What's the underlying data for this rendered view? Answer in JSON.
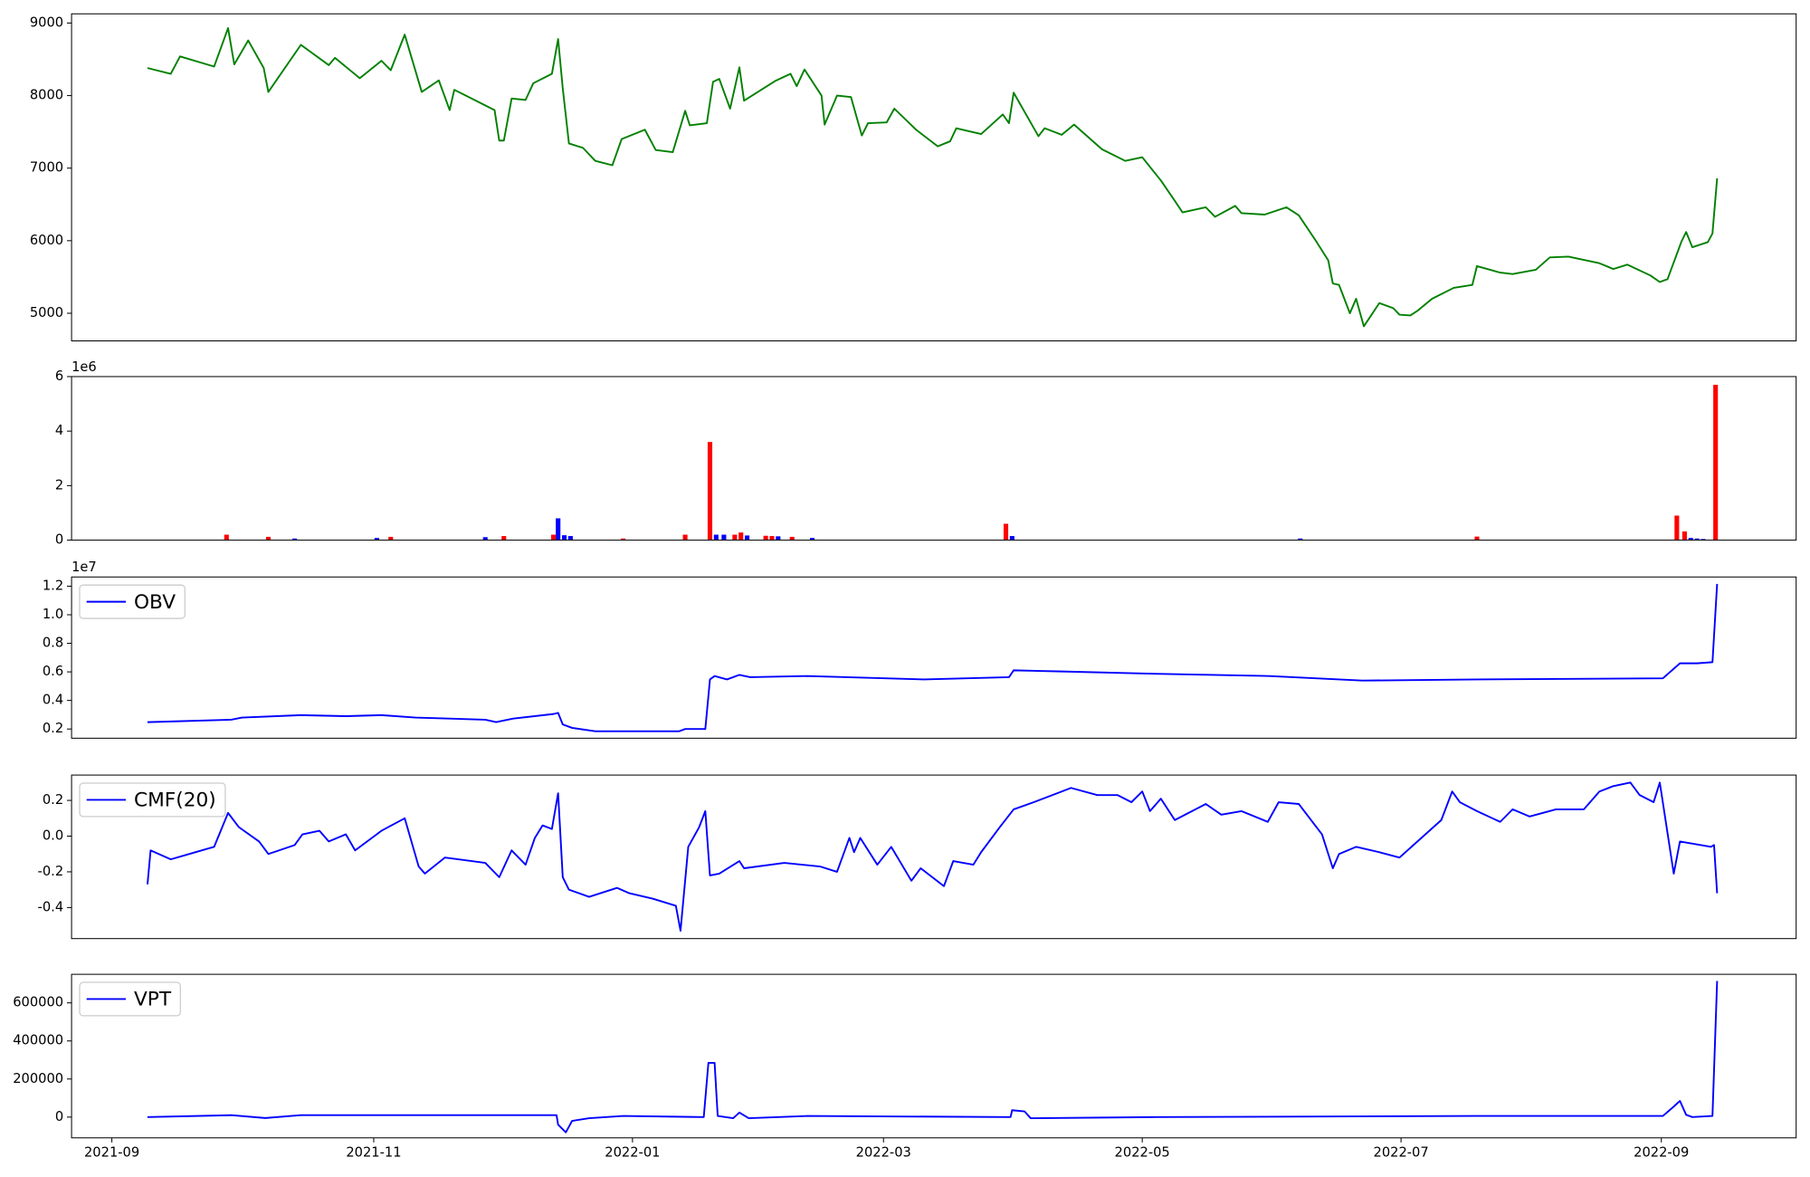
{
  "chart_data": [
    {
      "type": "line",
      "xlim": [
        2021.638,
        2022.751
      ],
      "ylim": [
        4619,
        9127
      ],
      "yticks": [
        5000,
        6000,
        7000,
        8000,
        9000
      ],
      "x": [
        2021.687,
        2021.702,
        2021.708,
        2021.73,
        2021.739,
        2021.743,
        2021.752,
        2021.762,
        2021.765,
        2021.786,
        2021.804,
        2021.808,
        2021.824,
        2021.838,
        2021.844,
        2021.853,
        2021.864,
        2021.875,
        2021.882,
        2021.885,
        2021.911,
        2021.914,
        2021.917,
        2021.922,
        2021.931,
        2021.936,
        2021.948,
        2021.952,
        2021.955,
        2021.959,
        2021.968,
        2021.976,
        2021.987,
        2021.993,
        2022.008,
        2022.015,
        2022.026,
        2022.034,
        2022.037,
        2022.048,
        2022.052,
        2022.056,
        2022.063,
        2022.069,
        2022.072,
        2022.092,
        2022.102,
        2022.106,
        2022.111,
        2022.122,
        2022.124,
        2022.132,
        2022.141,
        2022.148,
        2022.152,
        2022.164,
        2022.169,
        2022.183,
        2022.197,
        2022.205,
        2022.209,
        2022.225,
        2022.239,
        2022.243,
        2022.246,
        2022.262,
        2022.266,
        2022.277,
        2022.285,
        2022.303,
        2022.318,
        2022.329,
        2022.341,
        2022.35,
        2022.355,
        2022.37,
        2022.376,
        2022.389,
        2022.393,
        2022.408,
        2022.422,
        2022.43,
        2022.441,
        2022.449,
        2022.452,
        2022.456,
        2022.463,
        2022.467,
        2022.472,
        2022.482,
        2022.491,
        2022.495,
        2022.502,
        2022.507,
        2022.516,
        2022.53,
        2022.542,
        2022.545,
        2022.56,
        2022.568,
        2022.583,
        2022.592,
        2022.604,
        2022.624,
        2022.633,
        2022.642,
        2022.657,
        2022.663,
        2022.668,
        2022.677,
        2022.68,
        2022.684,
        2022.694,
        2022.697,
        2022.7
      ],
      "series": [
        {
          "color": "#008000",
          "values": [
            8380,
            8300,
            8540,
            8400,
            8930,
            8430,
            8760,
            8380,
            8050,
            8700,
            8420,
            8520,
            8240,
            8480,
            8350,
            8840,
            8050,
            8210,
            7800,
            8080,
            7800,
            7380,
            7380,
            7960,
            7940,
            8170,
            8300,
            8780,
            8100,
            7340,
            7280,
            7100,
            7040,
            7400,
            7530,
            7250,
            7220,
            7790,
            7590,
            7620,
            8190,
            8230,
            7820,
            8390,
            7930,
            8200,
            8300,
            8130,
            8360,
            8000,
            7600,
            8000,
            7980,
            7450,
            7620,
            7630,
            7820,
            7530,
            7300,
            7370,
            7550,
            7470,
            7740,
            7620,
            8040,
            7440,
            7550,
            7460,
            7600,
            7260,
            7100,
            7150,
            6830,
            6550,
            6390,
            6460,
            6330,
            6480,
            6380,
            6360,
            6460,
            6350,
            6000,
            5730,
            5410,
            5390,
            5000,
            5200,
            4820,
            5140,
            5070,
            4980,
            4970,
            5040,
            5200,
            5350,
            5390,
            5650,
            5560,
            5540,
            5600,
            5770,
            5780,
            5690,
            5610,
            5670,
            5520,
            5430,
            5470,
            5990,
            6120,
            5910,
            5980,
            6100,
            6860
          ]
        }
      ]
    },
    {
      "type": "bar",
      "xlim": [
        2021.638,
        2022.751
      ],
      "ylim": [
        0,
        6000000
      ],
      "y_offset_label": "1e6",
      "yticks": [
        0,
        {
          "value": 2000000,
          "label": "2"
        },
        {
          "value": 4000000,
          "label": "4"
        },
        {
          "value": 6000000,
          "label": "6"
        }
      ],
      "x": [
        2021.738,
        2021.765,
        2021.782,
        2021.835,
        2021.844,
        2021.905,
        2021.917,
        2021.949,
        2021.952,
        2021.956,
        2021.96,
        2021.994,
        2022.034,
        2022.05,
        2022.054,
        2022.059,
        2022.066,
        2022.07,
        2022.074,
        2022.086,
        2022.09,
        2022.094,
        2022.103,
        2022.116,
        2022.241,
        2022.245,
        2022.431,
        2022.545,
        2022.674,
        2022.679,
        2022.683,
        2022.687,
        2022.691,
        2022.699
      ],
      "values": [
        200000,
        120000,
        60000,
        80000,
        120000,
        110000,
        150000,
        200000,
        800000,
        180000,
        150000,
        60000,
        200000,
        3600000,
        200000,
        200000,
        200000,
        280000,
        170000,
        160000,
        150000,
        140000,
        120000,
        80000,
        600000,
        150000,
        60000,
        130000,
        900000,
        320000,
        80000,
        60000,
        40000,
        5700000
      ],
      "colors": [
        "#ff0000",
        "#ff0000",
        "#0000ff",
        "#0000ff",
        "#ff0000",
        "#0000ff",
        "#ff0000",
        "#ff0000",
        "#0000ff",
        "#0000ff",
        "#0000ff",
        "#ff0000",
        "#ff0000",
        "#ff0000",
        "#0000ff",
        "#0000ff",
        "#ff0000",
        "#ff0000",
        "#0000ff",
        "#ff0000",
        "#ff0000",
        "#0000ff",
        "#ff0000",
        "#0000ff",
        "#ff0000",
        "#0000ff",
        "#0000ff",
        "#ff0000",
        "#ff0000",
        "#ff0000",
        "#0000ff",
        "#0000ff",
        "#0000ff",
        "#ff0000"
      ]
    },
    {
      "type": "line",
      "xlim": [
        2021.638,
        2022.751
      ],
      "ylim": [
        1355000,
        12645000
      ],
      "y_offset_label": "1e7",
      "legend": "upper left",
      "yticks": [
        {
          "value": 2000000,
          "label": "0.2"
        },
        {
          "value": 4000000,
          "label": "0.4"
        },
        {
          "value": 6000000,
          "label": "0.6"
        },
        {
          "value": 8000000,
          "label": "0.8"
        },
        {
          "value": 10000000,
          "label": "1.0"
        },
        {
          "value": 12000000,
          "label": "1.2"
        }
      ],
      "x": [
        2021.687,
        2021.741,
        2021.748,
        2021.786,
        2021.815,
        2021.838,
        2021.86,
        2021.905,
        2021.912,
        2021.923,
        2021.949,
        2021.952,
        2021.955,
        2021.961,
        2021.976,
        2022.02,
        2022.03,
        2022.034,
        2022.047,
        2022.05,
        2022.053,
        2022.061,
        2022.069,
        2022.076,
        2022.113,
        2022.188,
        2022.243,
        2022.246,
        2022.277,
        2022.337,
        2022.411,
        2022.471,
        2022.545,
        2022.665,
        2022.676,
        2022.687,
        2022.697,
        2022.7
      ],
      "series": [
        {
          "name": "OBV",
          "color": "#0000ff",
          "values": [
            2480000,
            2650000,
            2800000,
            2970000,
            2900000,
            2970000,
            2800000,
            2650000,
            2480000,
            2730000,
            3050000,
            3130000,
            2320000,
            2080000,
            1840000,
            1840000,
            1840000,
            2000000,
            2000000,
            5470000,
            5710000,
            5470000,
            5790000,
            5630000,
            5710000,
            5470000,
            5630000,
            6110000,
            6030000,
            5870000,
            5710000,
            5390000,
            5470000,
            5550000,
            6600000,
            6600000,
            6680000,
            12160000
          ]
        }
      ]
    },
    {
      "type": "line",
      "xlim": [
        2021.638,
        2022.751
      ],
      "ylim": [
        -0.574,
        0.342
      ],
      "legend": "upper left",
      "yticks": [
        -0.4,
        -0.2,
        {
          "value": 0,
          "label": "0.0"
        },
        0.2
      ],
      "x": [
        2021.687,
        2021.689,
        2021.702,
        2021.71,
        2021.73,
        2021.739,
        2021.746,
        2021.759,
        2021.765,
        2021.782,
        2021.787,
        2021.798,
        2021.804,
        2021.815,
        2021.821,
        2021.838,
        2021.853,
        2021.862,
        2021.866,
        2021.879,
        2021.905,
        2021.914,
        2021.922,
        2021.931,
        2021.937,
        2021.942,
        2021.948,
        2021.952,
        2021.955,
        2021.959,
        2021.972,
        2021.99,
        2021.998,
        2022.013,
        2022.028,
        2022.031,
        2022.036,
        2022.043,
        2022.047,
        2022.05,
        2022.056,
        2022.069,
        2022.072,
        2022.098,
        2022.121,
        2022.132,
        2022.14,
        2022.143,
        2022.147,
        2022.158,
        2022.167,
        2022.18,
        2022.186,
        2022.201,
        2022.207,
        2022.22,
        2022.225,
        2022.237,
        2022.246,
        2022.259,
        2022.277,
        2022.283,
        2022.3,
        2022.313,
        2022.322,
        2022.329,
        2022.334,
        2022.341,
        2022.35,
        2022.37,
        2022.38,
        2022.393,
        2022.41,
        2022.417,
        2022.43,
        2022.445,
        2022.452,
        2022.456,
        2022.467,
        2022.482,
        2022.495,
        2022.504,
        2022.522,
        2022.529,
        2022.534,
        2022.545,
        2022.56,
        2022.568,
        2022.579,
        2022.596,
        2022.614,
        2022.624,
        2022.633,
        2022.644,
        2022.65,
        2022.659,
        2022.663,
        2022.672,
        2022.676,
        2022.696,
        2022.698,
        2022.7
      ],
      "series": [
        {
          "name": "CMF(20)",
          "color": "#0000ff",
          "values": [
            -0.27,
            -0.08,
            -0.13,
            -0.11,
            -0.06,
            0.13,
            0.05,
            -0.03,
            -0.1,
            -0.05,
            0.01,
            0.03,
            -0.03,
            0.01,
            -0.08,
            0.03,
            0.1,
            -0.17,
            -0.21,
            -0.12,
            -0.15,
            -0.23,
            -0.08,
            -0.16,
            -0.01,
            0.06,
            0.04,
            0.24,
            -0.23,
            -0.3,
            -0.34,
            -0.29,
            -0.32,
            -0.35,
            -0.39,
            -0.53,
            -0.06,
            0.05,
            0.14,
            -0.22,
            -0.21,
            -0.14,
            -0.18,
            -0.15,
            -0.17,
            -0.2,
            -0.01,
            -0.09,
            -0.01,
            -0.16,
            -0.06,
            -0.25,
            -0.18,
            -0.28,
            -0.14,
            -0.16,
            -0.09,
            0.05,
            0.15,
            0.19,
            0.25,
            0.27,
            0.23,
            0.23,
            0.19,
            0.25,
            0.14,
            0.21,
            0.09,
            0.18,
            0.12,
            0.14,
            0.08,
            0.19,
            0.18,
            0.01,
            -0.18,
            -0.1,
            -0.06,
            -0.09,
            -0.12,
            -0.05,
            0.09,
            0.25,
            0.19,
            0.14,
            0.08,
            0.15,
            0.11,
            0.15,
            0.15,
            0.25,
            0.28,
            0.3,
            0.23,
            0.19,
            0.3,
            -0.21,
            -0.03,
            -0.06,
            -0.05,
            -0.32
          ]
        }
      ]
    },
    {
      "type": "line",
      "xlim": [
        2021.638,
        2022.751
      ],
      "ylim": [
        -109000,
        750000
      ],
      "legend": "upper left",
      "yticks": [
        0,
        200000,
        400000,
        600000
      ],
      "xticks": [
        {
          "value": 2021.664,
          "label": "2021-09"
        },
        {
          "value": 2021.833,
          "label": "2021-11"
        },
        {
          "value": 2022.0,
          "label": "2022-01"
        },
        {
          "value": 2022.162,
          "label": "2022-03"
        },
        {
          "value": 2022.329,
          "label": "2022-05"
        },
        {
          "value": 2022.496,
          "label": "2022-07"
        },
        {
          "value": 2022.664,
          "label": "2022-09"
        }
      ],
      "x": [
        2021.687,
        2021.741,
        2021.763,
        2021.786,
        2021.853,
        2021.951,
        2021.952,
        2021.957,
        2021.961,
        2021.972,
        2021.994,
        2022.046,
        2022.049,
        2022.053,
        2022.055,
        2022.065,
        2022.069,
        2022.075,
        2022.113,
        2022.244,
        2022.245,
        2022.253,
        2022.257,
        2022.337,
        2022.544,
        2022.665,
        2022.671,
        2022.676,
        2022.68,
        2022.684,
        2022.697,
        2022.7
      ],
      "series": [
        {
          "name": "VPT",
          "color": "#0000ff",
          "values": [
            0,
            10000,
            -5000,
            10000,
            10000,
            10000,
            -40000,
            -80000,
            -20000,
            -6000,
            6000,
            0,
            285000,
            285000,
            6000,
            -6000,
            24000,
            -6000,
            6000,
            0,
            36000,
            30000,
            -6000,
            0,
            6000,
            6000,
            48000,
            85000,
            12000,
            0,
            6000,
            715000
          ]
        }
      ]
    }
  ]
}
